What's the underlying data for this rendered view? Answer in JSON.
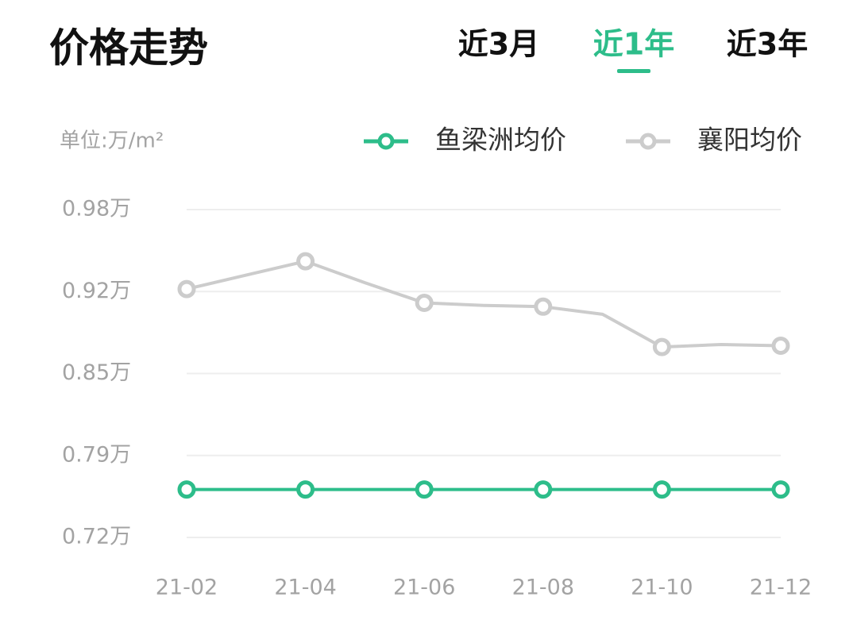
{
  "header": {
    "title": "价格走势",
    "tabs": [
      "近3月",
      "近1年",
      "近3年"
    ],
    "active_tab": 1,
    "active_color": "#2dbd8a"
  },
  "chart_data": {
    "type": "line",
    "unit_label": "单位:万/m²",
    "categories": [
      "21-02",
      null,
      "21-04",
      null,
      "21-06",
      null,
      "21-08",
      null,
      "21-10",
      null,
      "21-12"
    ],
    "series": [
      {
        "name": "鱼梁洲均价",
        "color": "#2dbd8a",
        "values": [
          0.758,
          0.758,
          0.758,
          0.758,
          0.758,
          0.758,
          0.758,
          0.758,
          0.758,
          0.758,
          0.758
        ]
      },
      {
        "name": "襄阳均价",
        "color": "#cccccc",
        "values": [
          0.917,
          0.928,
          0.939,
          0.922,
          0.906,
          0.904,
          0.903,
          0.897,
          0.871,
          0.873,
          0.872
        ]
      }
    ],
    "ylim": [
      0.72,
      0.98
    ],
    "yticks": [
      {
        "value": 0.72,
        "label": "0.72万"
      },
      {
        "value": 0.785,
        "label": "0.79万"
      },
      {
        "value": 0.85,
        "label": "0.85万"
      },
      {
        "value": 0.915,
        "label": "0.92万"
      },
      {
        "value": 0.98,
        "label": "0.98万"
      }
    ],
    "grid": true
  }
}
